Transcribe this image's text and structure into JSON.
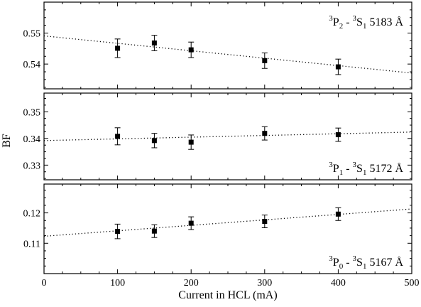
{
  "chart_data": {
    "type": "scatter",
    "ylabel": "BF",
    "xlabel": "Current in HCL (mA)",
    "xlim": [
      0,
      500
    ],
    "xticks": [
      "0",
      "100",
      "200",
      "300",
      "400",
      "500"
    ],
    "grid": false,
    "panels": [
      {
        "label": {
          "term1_sup": "3",
          "term1": "P",
          "term1_sub": "2",
          "sep": " - ",
          "term2_sup": "3",
          "term2": "S",
          "term2_sub": "1",
          "wavelength": " 5183 Å"
        },
        "label_position": "top-right",
        "ylim": [
          0.532,
          0.56
        ],
        "yticks": [
          "0.54",
          "0.55"
        ],
        "points": [
          {
            "x": 100,
            "y": 0.5451,
            "err": 0.003
          },
          {
            "x": 150,
            "y": 0.5468,
            "err": 0.0025
          },
          {
            "x": 200,
            "y": 0.5446,
            "err": 0.0025
          },
          {
            "x": 300,
            "y": 0.5411,
            "err": 0.0025
          },
          {
            "x": 400,
            "y": 0.5391,
            "err": 0.0025
          }
        ],
        "fit": {
          "x": [
            0,
            500
          ],
          "y": [
            0.5491,
            0.5371
          ]
        }
      },
      {
        "label": {
          "term1_sup": "3",
          "term1": "P",
          "term1_sub": "1",
          "sep": " - ",
          "term2_sup": "3",
          "term2": "S",
          "term2_sub": "1",
          "wavelength": " 5172 Å"
        },
        "label_position": "bottom-right",
        "ylim": [
          0.3245,
          0.357
        ],
        "yticks": [
          "0.33",
          "0.34",
          "0.35"
        ],
        "points": [
          {
            "x": 100,
            "y": 0.3408,
            "err": 0.0032
          },
          {
            "x": 150,
            "y": 0.3392,
            "err": 0.0027
          },
          {
            "x": 200,
            "y": 0.3386,
            "err": 0.0027
          },
          {
            "x": 300,
            "y": 0.3419,
            "err": 0.0025
          },
          {
            "x": 400,
            "y": 0.3414,
            "err": 0.0025
          }
        ],
        "fit": {
          "x": [
            0,
            500
          ],
          "y": [
            0.3392,
            0.3424
          ]
        }
      },
      {
        "label": {
          "term1_sup": "3",
          "term1": "P",
          "term1_sub": "0",
          "sep": " - ",
          "term2_sup": "3",
          "term2": "S",
          "term2_sub": "1",
          "wavelength": " 5167 Å"
        },
        "label_position": "bottom-right",
        "ylim": [
          0.1,
          0.1295
        ],
        "yticks": [
          "0.11",
          "0.12"
        ],
        "points": [
          {
            "x": 100,
            "y": 0.1139,
            "err": 0.0024
          },
          {
            "x": 150,
            "y": 0.114,
            "err": 0.0021
          },
          {
            "x": 200,
            "y": 0.1166,
            "err": 0.0021
          },
          {
            "x": 300,
            "y": 0.1172,
            "err": 0.0021
          },
          {
            "x": 400,
            "y": 0.1196,
            "err": 0.0021
          }
        ],
        "fit": {
          "x": [
            0,
            500
          ],
          "y": [
            0.1123,
            0.1213
          ]
        }
      }
    ]
  }
}
